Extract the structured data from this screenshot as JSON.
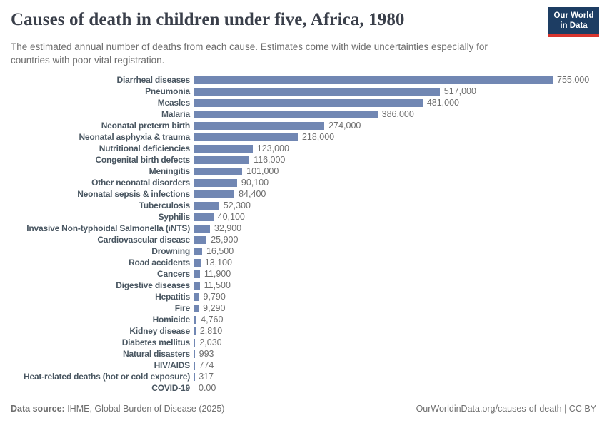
{
  "header": {
    "title": "Causes of death in children under five, Africa, 1980",
    "subtitle": "The estimated annual number of deaths from each cause. Estimates come with wide uncertainties especially for\ncountries with poor vital registration.",
    "logo": {
      "line1": "Our World",
      "line2": "in Data"
    }
  },
  "chart_data": {
    "type": "bar",
    "orientation": "horizontal",
    "title": "Causes of death in children under five, Africa, 1980",
    "xlabel": "",
    "ylabel": "",
    "x_max": 755000,
    "grid": false,
    "legend": "none",
    "bar_color": "#7187b3",
    "categories": [
      "Diarrheal diseases",
      "Pneumonia",
      "Measles",
      "Malaria",
      "Neonatal preterm birth",
      "Neonatal asphyxia & trauma",
      "Nutritional deficiencies",
      "Congenital birth defects",
      "Meningitis",
      "Other neonatal disorders",
      "Neonatal sepsis & infections",
      "Tuberculosis",
      "Syphilis",
      "Invasive Non-typhoidal Salmonella (iNTS)",
      "Cardiovascular disease",
      "Drowning",
      "Road accidents",
      "Cancers",
      "Digestive diseases",
      "Hepatitis",
      "Fire",
      "Homicide",
      "Kidney disease",
      "Diabetes mellitus",
      "Natural disasters",
      "HIV/AIDS",
      "Heat-related deaths (hot or cold exposure)",
      "COVID-19"
    ],
    "values": [
      755000,
      517000,
      481000,
      386000,
      274000,
      218000,
      123000,
      116000,
      101000,
      90100,
      84400,
      52300,
      40100,
      32900,
      25900,
      16500,
      13100,
      11900,
      11500,
      9790,
      9290,
      4760,
      2810,
      2030,
      993,
      774,
      317,
      0
    ],
    "value_labels": [
      "755,000",
      "517,000",
      "481,000",
      "386,000",
      "274,000",
      "218,000",
      "123,000",
      "116,000",
      "101,000",
      "90,100",
      "84,400",
      "52,300",
      "40,100",
      "32,900",
      "25,900",
      "16,500",
      "13,100",
      "11,900",
      "11,500",
      "9,790",
      "9,290",
      "4,760",
      "2,810",
      "2,030",
      "993",
      "774",
      "317",
      "0.00"
    ]
  },
  "footer": {
    "source_label": "Data source:",
    "source_text": " IHME, Global Burden of Disease (2025)",
    "right_text": "OurWorldinData.org/causes-of-death | CC BY"
  },
  "colors": {
    "bar": "#7187b3",
    "axis_line": "#c9c9c9",
    "title_text": "#3a3f4a",
    "muted_text": "#6e6e6e",
    "category_text": "#4a5762",
    "logo_bg": "#1d3d63",
    "logo_accent": "#d8352e"
  }
}
